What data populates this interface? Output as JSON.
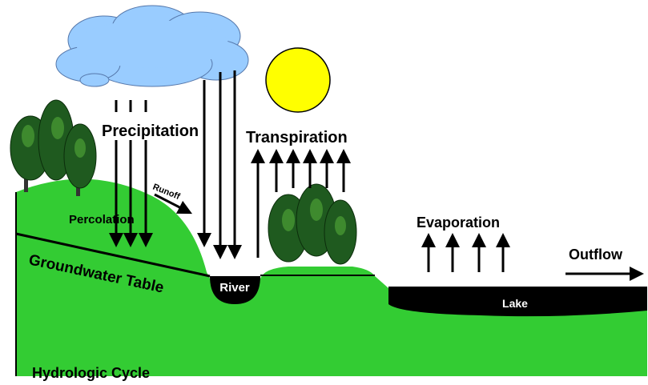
{
  "title": "Hydrologic Cycle",
  "labels": {
    "precipitation": "Precipitation",
    "transpiration": "Transpiration",
    "runoff": "Runoff",
    "percolation": "Percolation",
    "groundwater_table": "Groundwater Table",
    "river": "River",
    "evaporation": "Evaporation",
    "outflow": "Outflow",
    "lake": "Lake"
  }
}
